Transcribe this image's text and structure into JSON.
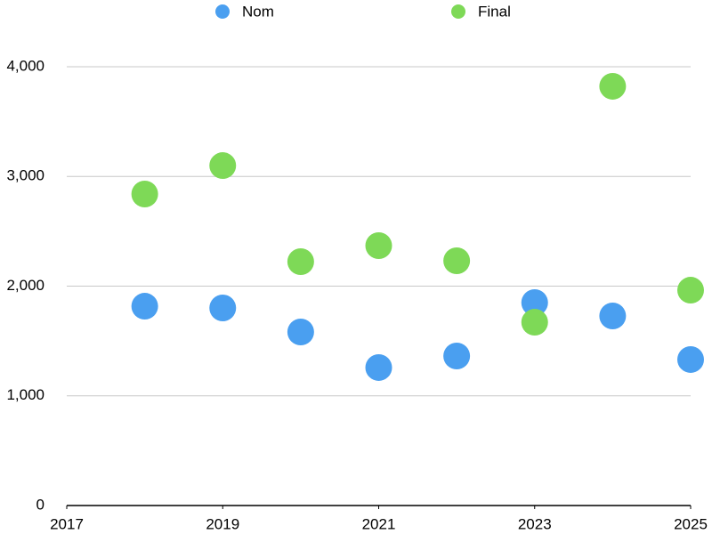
{
  "chart_data": {
    "type": "scatter",
    "series": [
      {
        "name": "Nom",
        "color": "#4a9ff0",
        "x": [
          2018,
          2019,
          2020,
          2021,
          2022,
          2023,
          2024,
          2025
        ],
        "values": [
          1817,
          1801,
          1582,
          1258,
          1363,
          1850,
          1728,
          1331
        ]
      },
      {
        "name": "Final",
        "color": "#7ed957",
        "x": [
          2018,
          2019,
          2020,
          2021,
          2022,
          2023,
          2024,
          2025
        ],
        "values": [
          2840,
          3099,
          2223,
          2369,
          2231,
          1671,
          3822,
          1963
        ]
      }
    ],
    "xlim": [
      2017,
      2025
    ],
    "xticks": [
      2017,
      2019,
      2021,
      2023,
      2025
    ],
    "ylim": [
      0,
      4000
    ],
    "yticks": [
      0,
      {
        "value": 1000,
        "label": "1,000"
      },
      {
        "value": 2000,
        "label": "2,000"
      },
      {
        "value": 3000,
        "label": "3,000"
      },
      {
        "value": 4000,
        "label": "4,000"
      }
    ],
    "grid": true,
    "legend": "top"
  }
}
